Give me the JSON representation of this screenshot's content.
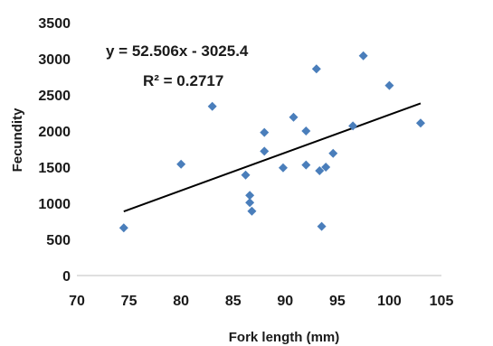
{
  "chart_data": {
    "type": "scatter",
    "title": "",
    "xlabel": "Fork length (mm)",
    "ylabel": "Fecundity",
    "xlim": [
      70,
      105
    ],
    "ylim": [
      0,
      3500
    ],
    "x_ticks": [
      70,
      75,
      80,
      85,
      90,
      95,
      100,
      105
    ],
    "y_ticks": [
      0,
      500,
      1000,
      1500,
      2000,
      2500,
      3000,
      3500
    ],
    "grid": false,
    "legend": "none",
    "marker_color": "#4a7ebb",
    "trendline_color": "#000000",
    "series": [
      {
        "points": [
          {
            "x": 74.5,
            "y": 660
          },
          {
            "x": 80,
            "y": 1540
          },
          {
            "x": 83,
            "y": 2340
          },
          {
            "x": 86.2,
            "y": 1390
          },
          {
            "x": 86.6,
            "y": 1110
          },
          {
            "x": 86.6,
            "y": 1010
          },
          {
            "x": 86.8,
            "y": 890
          },
          {
            "x": 88,
            "y": 1980
          },
          {
            "x": 88,
            "y": 1720
          },
          {
            "x": 89.8,
            "y": 1490
          },
          {
            "x": 90.8,
            "y": 2190
          },
          {
            "x": 92,
            "y": 2000
          },
          {
            "x": 92,
            "y": 1530
          },
          {
            "x": 93,
            "y": 2860
          },
          {
            "x": 93.3,
            "y": 1450
          },
          {
            "x": 93.5,
            "y": 680
          },
          {
            "x": 93.9,
            "y": 1500
          },
          {
            "x": 94.6,
            "y": 1690
          },
          {
            "x": 96.5,
            "y": 2070
          },
          {
            "x": 97.5,
            "y": 3040
          },
          {
            "x": 100,
            "y": 2630
          },
          {
            "x": 103,
            "y": 2110
          }
        ]
      }
    ],
    "trendline": {
      "slope": 52.506,
      "intercept": -3025.4,
      "x_range": [
        74.5,
        103
      ],
      "equation": "y = 52.506x - 3025.4",
      "r2_label": "R² = 0.2717"
    }
  }
}
